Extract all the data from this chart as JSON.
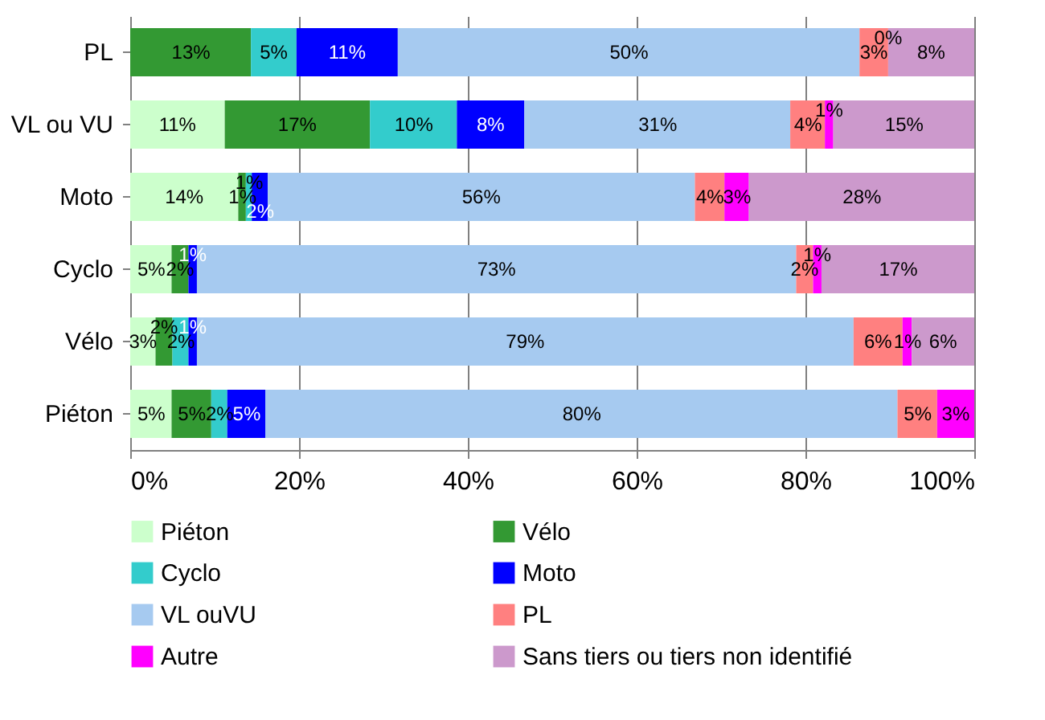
{
  "chart_data": {
    "type": "bar",
    "orientation": "horizontal",
    "stacked": true,
    "categories": [
      "PL",
      "VL ou VU",
      "Moto",
      "Cyclo",
      "Vélo",
      "Piéton"
    ],
    "series": [
      {
        "name": "Piéton",
        "color": "#ccffcc",
        "values": [
          0,
          11.2,
          12.8,
          4.9,
          3.0,
          4.9
        ]
      },
      {
        "name": "Vélo",
        "color": "#339933",
        "values": [
          14.3,
          17.2,
          0.9,
          2.0,
          2.0,
          4.7
        ]
      },
      {
        "name": "Cyclo",
        "color": "#33cccc",
        "values": [
          5.4,
          10.3,
          0.7,
          0,
          1.9,
          1.9
        ]
      },
      {
        "name": "Moto",
        "color": "#0000ff",
        "values": [
          12.0,
          8.0,
          1.9,
          1.0,
          1.0,
          4.5
        ]
      },
      {
        "name": "VL ouVU",
        "color": "#a6caf0",
        "values": [
          54.7,
          31.5,
          50.6,
          71.0,
          77.8,
          74.9
        ]
      },
      {
        "name": "PL",
        "color": "#ff8080",
        "values": [
          3.4,
          4.1,
          3.5,
          2.0,
          5.8,
          4.7
        ]
      },
      {
        "name": "Autre",
        "color": "#ff00ff",
        "values": [
          0,
          1.0,
          2.9,
          1.0,
          1.1,
          4.4
        ]
      },
      {
        "name": "Sans tiers ou tiers non identifié",
        "color": "#cc99cc",
        "values": [
          10.2,
          16.7,
          26.7,
          18.1,
          7.4,
          0
        ]
      }
    ],
    "annotations": [
      {
        "text": "13%",
        "x": 7.2,
        "y": "PL"
      },
      {
        "text": "5%",
        "x": 17.0,
        "y": "PL"
      },
      {
        "text": "11%",
        "x": 25.7,
        "y": "PL"
      },
      {
        "text": "50%",
        "x": 59.1,
        "y": "PL"
      },
      {
        "text": "3%",
        "x": 88.1,
        "y": "PL"
      },
      {
        "text": "0%",
        "x": 89.8,
        "y": "PL"
      },
      {
        "text": "8%",
        "x": 94.9,
        "y": "PL"
      },
      {
        "text": "11%",
        "x": 5.6,
        "y": "VL ou VU"
      },
      {
        "text": "17%",
        "x": 19.8,
        "y": "VL ou VU"
      },
      {
        "text": "10%",
        "x": 33.6,
        "y": "VL ou VU"
      },
      {
        "text": "8%",
        "x": 42.7,
        "y": "VL ou VU"
      },
      {
        "text": "31%",
        "x": 62.5,
        "y": "VL ou VU"
      },
      {
        "text": "4%",
        "x": 80.3,
        "y": "VL ou VU"
      },
      {
        "text": "1%",
        "x": 82.8,
        "y": "VL ou VU"
      },
      {
        "text": "15%",
        "x": 91.7,
        "y": "VL ou VU"
      },
      {
        "text": "14%",
        "x": 6.4,
        "y": "Moto"
      },
      {
        "text": "1%",
        "x": 13.3,
        "y": "Moto"
      },
      {
        "text": "1%",
        "x": 14.1,
        "y": "Moto"
      },
      {
        "text": "2%",
        "x": 15.4,
        "y": "Moto"
      },
      {
        "text": "56%",
        "x": 41.6,
        "y": "Moto"
      },
      {
        "text": "4%",
        "x": 68.7,
        "y": "Moto"
      },
      {
        "text": "3%",
        "x": 71.9,
        "y": "Moto"
      },
      {
        "text": "28%",
        "x": 86.7,
        "y": "Moto"
      },
      {
        "text": "5%",
        "x": 2.5,
        "y": "Cyclo"
      },
      {
        "text": "2%",
        "x": 5.9,
        "y": "Cyclo"
      },
      {
        "text": "1%",
        "x": 7.4,
        "y": "Cyclo"
      },
      {
        "text": "73%",
        "x": 43.4,
        "y": "Cyclo"
      },
      {
        "text": "2%",
        "x": 79.9,
        "y": "Cyclo"
      },
      {
        "text": "1%",
        "x": 81.4,
        "y": "Cyclo"
      },
      {
        "text": "17%",
        "x": 91.0,
        "y": "Cyclo"
      },
      {
        "text": "3%",
        "x": 1.5,
        "y": "Vélo"
      },
      {
        "text": "2%",
        "x": 4.0,
        "y": "Vélo"
      },
      {
        "text": "2%",
        "x": 6.0,
        "y": "Vélo"
      },
      {
        "text": "1%",
        "x": 7.4,
        "y": "Vélo"
      },
      {
        "text": "79%",
        "x": 46.8,
        "y": "Vélo"
      },
      {
        "text": "6%",
        "x": 88.6,
        "y": "Vélo"
      },
      {
        "text": "1%",
        "x": 92.1,
        "y": "Vélo"
      },
      {
        "text": "6%",
        "x": 96.3,
        "y": "Vélo"
      },
      {
        "text": "5%",
        "x": 2.5,
        "y": "Piéton"
      },
      {
        "text": "5%",
        "x": 7.3,
        "y": "Piéton"
      },
      {
        "text": "2%",
        "x": 10.6,
        "y": "Piéton"
      },
      {
        "text": "5%",
        "x": 13.8,
        "y": "Piéton"
      },
      {
        "text": "80%",
        "x": 53.5,
        "y": "Piéton"
      },
      {
        "text": "5%",
        "x": 93.3,
        "y": "Piéton"
      },
      {
        "text": "3%",
        "x": 97.8,
        "y": "Piéton"
      }
    ],
    "xlim": [
      0,
      100
    ],
    "xticks": [
      {
        "value": 0,
        "label": "0%"
      },
      {
        "value": 20,
        "label": "20%"
      },
      {
        "value": 40,
        "label": "40%"
      },
      {
        "value": 60,
        "label": "60%"
      },
      {
        "value": 80,
        "label": "80%"
      },
      {
        "value": 100,
        "label": "100%"
      }
    ],
    "grid": "x",
    "legend": "bottom"
  }
}
